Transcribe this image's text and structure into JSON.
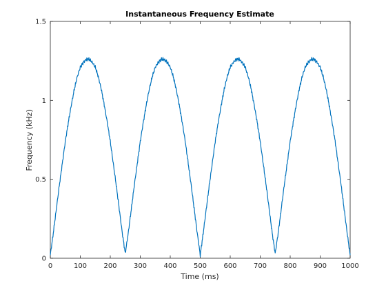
{
  "chart_data": {
    "type": "line",
    "title": "Instantaneous Frequency Estimate",
    "xlabel": "Time (ms)",
    "ylabel": "Frequency (kHz)",
    "xlim": [
      0,
      1000
    ],
    "ylim": [
      0,
      1.5
    ],
    "xticks": [
      0,
      100,
      200,
      300,
      400,
      500,
      600,
      700,
      800,
      900,
      1000
    ],
    "yticks": [
      0,
      0.5,
      1,
      1.5
    ],
    "xtick_labels": [
      "0",
      "100",
      "200",
      "300",
      "400",
      "500",
      "600",
      "700",
      "800",
      "900",
      "1000"
    ],
    "ytick_labels": [
      "0",
      "0.5",
      "1",
      "1.5"
    ],
    "grid": false,
    "legend": "none",
    "series": [
      {
        "color": "#0072BD",
        "x": [
          0,
          10,
          20,
          30,
          40,
          50,
          60,
          70,
          80,
          90,
          100,
          110,
          120,
          125,
          130,
          140,
          150,
          160,
          170,
          180,
          190,
          200,
          210,
          220,
          230,
          240,
          250,
          260,
          270,
          280,
          290,
          300,
          310,
          320,
          330,
          340,
          350,
          360,
          370,
          375,
          380,
          390,
          400,
          410,
          420,
          430,
          440,
          450,
          460,
          470,
          480,
          490,
          500,
          510,
          520,
          530,
          540,
          550,
          560,
          570,
          580,
          590,
          600,
          610,
          620,
          625,
          630,
          640,
          650,
          660,
          670,
          680,
          690,
          700,
          710,
          720,
          730,
          740,
          750,
          760,
          770,
          780,
          790,
          800,
          810,
          820,
          830,
          840,
          850,
          860,
          870,
          875,
          880,
          890,
          900,
          910,
          920,
          930,
          940,
          950,
          960,
          970,
          980,
          990,
          1000
        ],
        "y": [
          0.02,
          0.16,
          0.31,
          0.46,
          0.6,
          0.74,
          0.86,
          0.97,
          1.07,
          1.15,
          1.21,
          1.24,
          1.26,
          1.26,
          1.26,
          1.24,
          1.21,
          1.15,
          1.07,
          0.97,
          0.86,
          0.74,
          0.6,
          0.46,
          0.31,
          0.16,
          0.03,
          0.16,
          0.31,
          0.46,
          0.6,
          0.74,
          0.86,
          0.97,
          1.07,
          1.15,
          1.21,
          1.24,
          1.26,
          1.26,
          1.26,
          1.24,
          1.21,
          1.15,
          1.07,
          0.97,
          0.86,
          0.74,
          0.6,
          0.46,
          0.31,
          0.16,
          0.02,
          0.16,
          0.31,
          0.46,
          0.6,
          0.74,
          0.86,
          0.97,
          1.07,
          1.15,
          1.21,
          1.24,
          1.26,
          1.26,
          1.26,
          1.24,
          1.21,
          1.15,
          1.07,
          0.97,
          0.86,
          0.74,
          0.6,
          0.46,
          0.31,
          0.16,
          0.03,
          0.16,
          0.31,
          0.46,
          0.6,
          0.74,
          0.86,
          0.97,
          1.07,
          1.15,
          1.21,
          1.24,
          1.26,
          1.26,
          1.26,
          1.24,
          1.21,
          1.15,
          1.07,
          0.97,
          0.86,
          0.74,
          0.6,
          0.46,
          0.31,
          0.16,
          0.02
        ]
      }
    ]
  }
}
